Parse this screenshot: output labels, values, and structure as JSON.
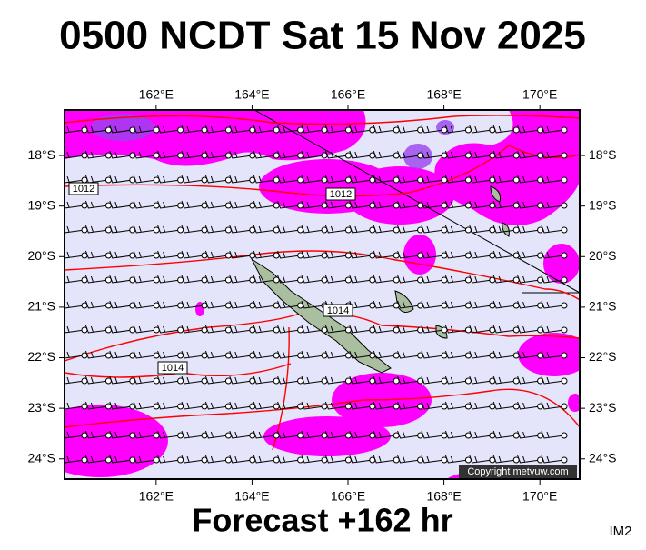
{
  "title": "0500 NCDT Sat 15 Nov 2025",
  "footer": "Forecast +162 hr",
  "corner_label": "IM2",
  "copyright": "Copyright metvuw.com",
  "map": {
    "lonlim": [
      160.09,
      170.83
    ],
    "latlim": [
      -17.1,
      -24.4
    ],
    "lon_ticks": [
      {
        "value": 162,
        "label": "162°E"
      },
      {
        "value": 164,
        "label": "164°E"
      },
      {
        "value": 166,
        "label": "166°E"
      },
      {
        "value": 168,
        "label": "168°E"
      },
      {
        "value": 170,
        "label": "170°E"
      }
    ],
    "lat_ticks": [
      {
        "value": -18,
        "label": "18°S"
      },
      {
        "value": -19,
        "label": "19°S"
      },
      {
        "value": -20,
        "label": "20°S"
      },
      {
        "value": -21,
        "label": "21°S"
      },
      {
        "value": -22,
        "label": "22°S"
      },
      {
        "value": -23,
        "label": "23°S"
      },
      {
        "value": -24,
        "label": "24°S"
      }
    ],
    "isobar_labels": [
      "1012",
      "1012",
      "1014",
      "1014"
    ]
  }
}
